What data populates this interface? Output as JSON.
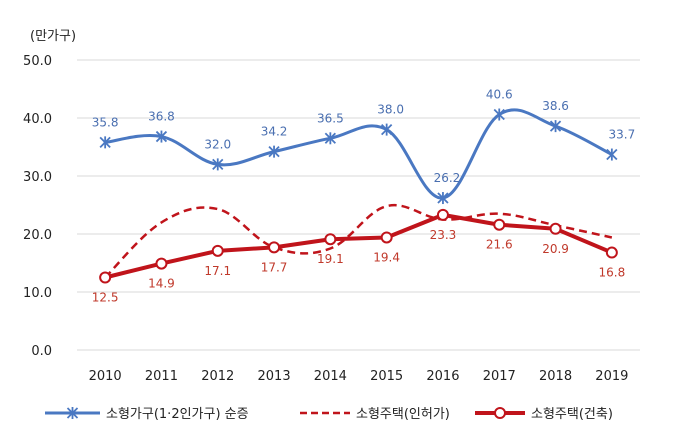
{
  "chart_data": {
    "type": "line",
    "unit_label": "(만가구)",
    "x": [
      "2010",
      "2011",
      "2012",
      "2013",
      "2014",
      "2015",
      "2016",
      "2017",
      "2018",
      "2019"
    ],
    "ylim": [
      0,
      50
    ],
    "yticks": [
      "0.0",
      "10.0",
      "20.0",
      "30.0",
      "40.0",
      "50.0"
    ],
    "grid": true,
    "legend_position": "bottom",
    "series": [
      {
        "name": "소형가구(1·2인가구) 순증",
        "values": [
          35.8,
          36.8,
          32.0,
          34.2,
          36.5,
          38.0,
          26.2,
          40.6,
          38.6,
          33.7
        ],
        "labels": [
          "35.8",
          "36.8",
          "32.0",
          "34.2",
          "36.5",
          "38.0",
          "26.2",
          "40.6",
          "38.6",
          "33.7"
        ],
        "color": "#4a78c2",
        "style": "solid-smooth",
        "marker": "asterisk"
      },
      {
        "name": "소형주택(인허가)",
        "values": [
          12.5,
          22.0,
          24.3,
          17.7,
          17.5,
          24.8,
          22.5,
          23.5,
          21.5,
          19.4
        ],
        "color": "#c0141b",
        "style": "dashed-smooth",
        "marker": "none"
      },
      {
        "name": "소형주택(건축)",
        "values": [
          12.5,
          14.9,
          17.1,
          17.7,
          19.1,
          19.4,
          23.3,
          21.6,
          20.9,
          16.8
        ],
        "labels": [
          "12.5",
          "14.9",
          "17.1",
          "17.7",
          "19.1",
          "19.4",
          "23.3",
          "21.6",
          "20.9",
          "16.8"
        ],
        "color": "#c0141b",
        "style": "solid",
        "marker": "circle"
      }
    ]
  }
}
